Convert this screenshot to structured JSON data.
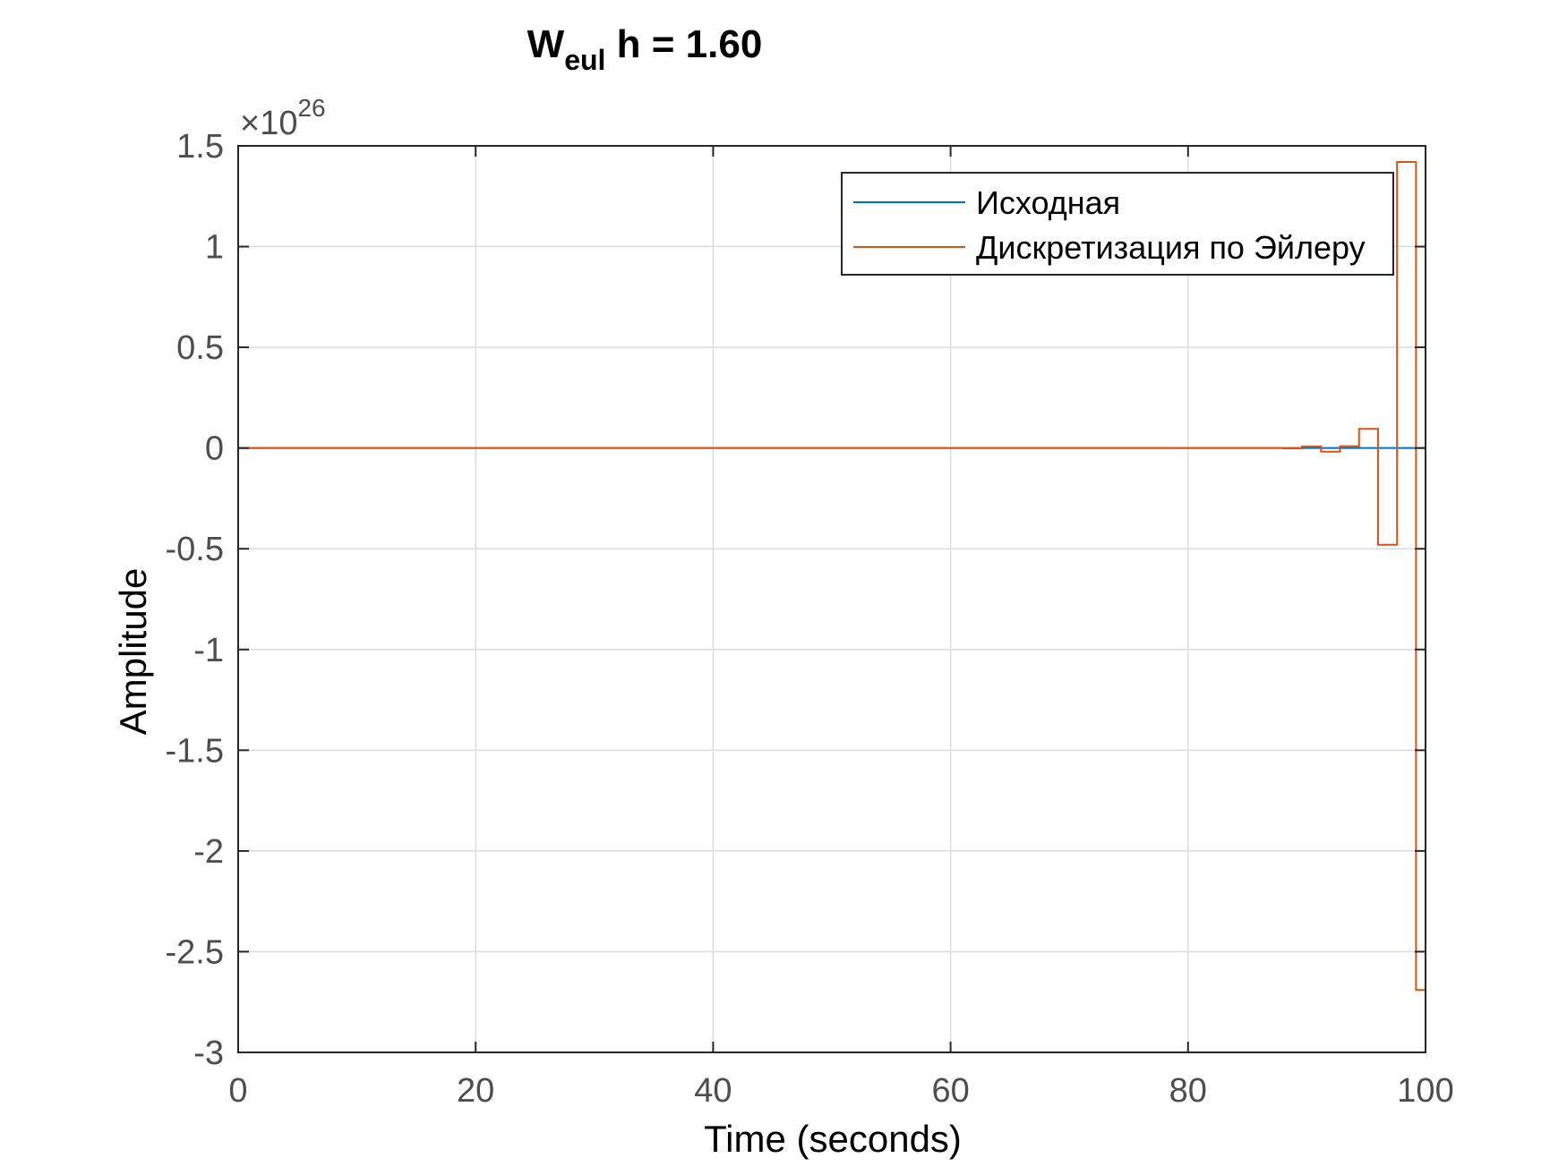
{
  "chart_data": {
    "type": "line",
    "title": {
      "main": "W",
      "subscript": "eul",
      "rest": " h = 1.60"
    },
    "xlabel": "Time (seconds)",
    "ylabel": "Amplitude",
    "exponent_label": {
      "prefix": "×10",
      "power": "26"
    },
    "xlim": [
      0,
      100
    ],
    "ylim": [
      -3,
      1.5
    ],
    "xticks": [
      0,
      20,
      40,
      60,
      80,
      100
    ],
    "xtick_labels": [
      "0",
      "20",
      "40",
      "60",
      "80",
      "100"
    ],
    "yticks": [
      1.5,
      1,
      0.5,
      0,
      -0.5,
      -1,
      -1.5,
      -2,
      -2.5,
      -3
    ],
    "ytick_labels": [
      "1.5",
      "1",
      "0.5",
      "0",
      "-0.5",
      "-1",
      "-1.5",
      "-2",
      "-2.5",
      "-3"
    ],
    "grid": true,
    "legend_position": "top-right",
    "series": [
      {
        "name": "Исходная",
        "color": "#0072bd",
        "style": "line",
        "x": [
          0,
          100
        ],
        "y": [
          0,
          0
        ]
      },
      {
        "name": "Дискретизация по Эйлеру",
        "color": "#d95319",
        "style": "stairs",
        "x": [
          0,
          88,
          89.6,
          91.2,
          92.8,
          94.4,
          96.0,
          97.6,
          99.2,
          100
        ],
        "y": [
          0,
          -0.002,
          0.008,
          -0.018,
          0.009,
          0.095,
          -0.48,
          1.42,
          -2.69,
          -2.69
        ]
      }
    ]
  }
}
